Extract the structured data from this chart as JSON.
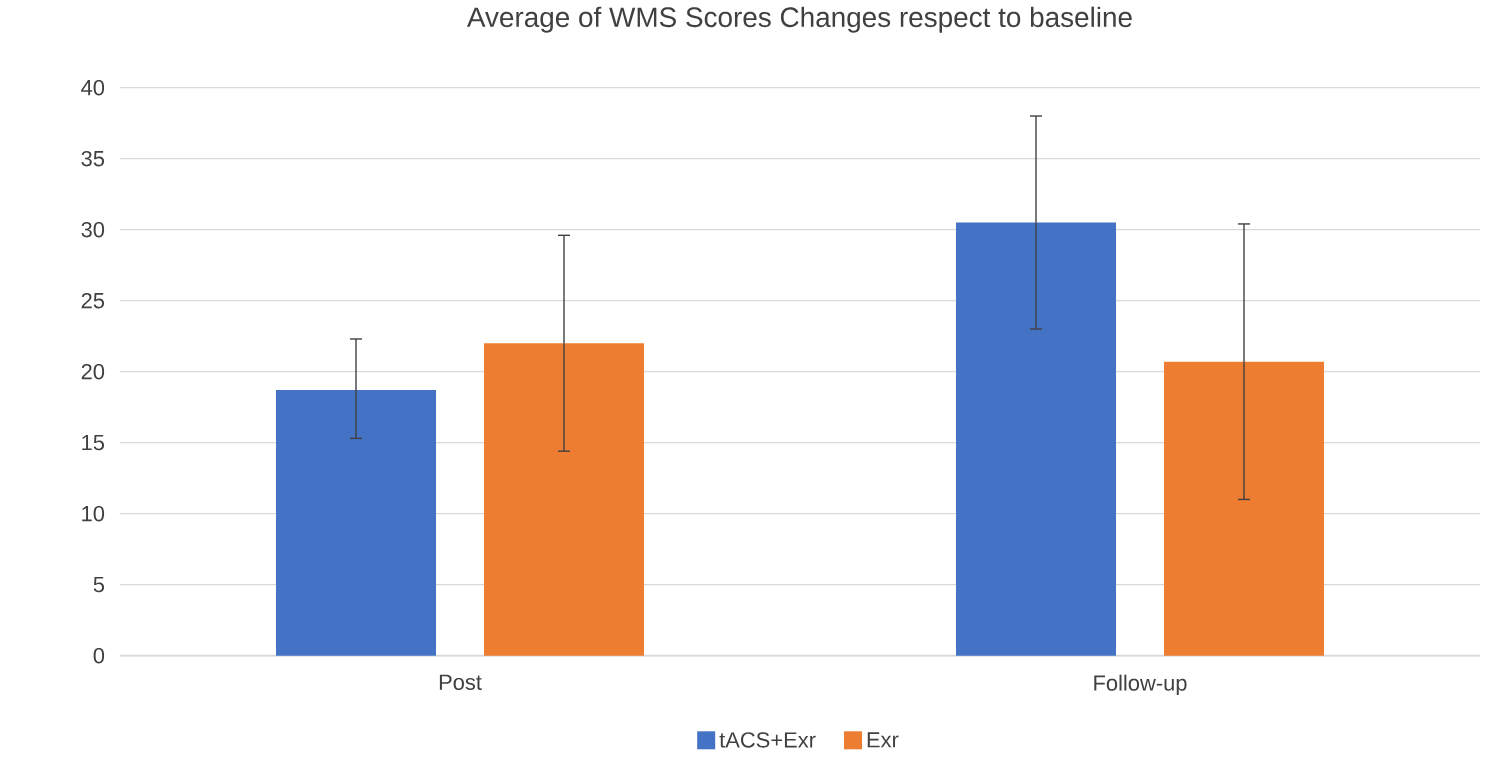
{
  "chart_data": {
    "type": "bar",
    "title": "Average of WMS Scores Changes respect to baseline",
    "categories": [
      "Post",
      "Follow-up"
    ],
    "series": [
      {
        "name": "tACS+Exr",
        "color": "#4472c4",
        "values": [
          18.7,
          30.5
        ],
        "errors": [
          [
            15.3,
            22.3
          ],
          [
            23.0,
            38.0
          ]
        ]
      },
      {
        "name": "Exr",
        "color": "#ed7d31",
        "values": [
          22.0,
          20.7
        ],
        "errors": [
          [
            14.4,
            29.6
          ],
          [
            11.0,
            30.4
          ]
        ]
      }
    ],
    "ylim": [
      0,
      40
    ],
    "yticks": [
      0,
      5,
      10,
      15,
      20,
      25,
      30,
      35,
      40
    ],
    "grid": "y",
    "legend": "bottom"
  }
}
